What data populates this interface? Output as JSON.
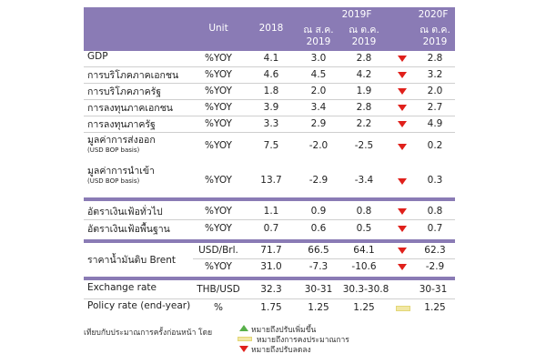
{
  "header": {
    "unit": "Unit",
    "y2018": "2018",
    "y2019": "2019F",
    "y2020": "2020F",
    "col_prev_2019": "ณ ส.ค. 2019",
    "col_cur_2019": "ณ ต.ค. 2019",
    "col_cur_2020": "ณ ต.ค. 2019"
  },
  "rows": [
    {
      "label": "GDP",
      "unit": "%YOY",
      "v2018": "4.1",
      "prev": "3.0",
      "cur": "2.8",
      "dir": "down",
      "v2020": "2.8"
    },
    {
      "label": "การบริโภคภาคเอกชน",
      "unit": "%YOY",
      "v2018": "4.6",
      "prev": "4.5",
      "cur": "4.2",
      "dir": "down",
      "v2020": "3.2"
    },
    {
      "label": "การบริโภคภาครัฐ",
      "unit": "%YOY",
      "v2018": "1.8",
      "prev": "2.0",
      "cur": "1.9",
      "dir": "down",
      "v2020": "2.0"
    },
    {
      "label": "การลงทุนภาคเอกชน",
      "unit": "%YOY",
      "v2018": "3.9",
      "prev": "3.4",
      "cur": "2.8",
      "dir": "down",
      "v2020": "2.7"
    },
    {
      "label": "การลงทุนภาครัฐ",
      "unit": "%YOY",
      "v2018": "3.3",
      "prev": "2.9",
      "cur": "2.2",
      "dir": "down",
      "v2020": "4.9"
    },
    {
      "label": "มูลค่าการส่งออก",
      "sub": "(USD BOP basis)",
      "unit": "%YOY",
      "v2018": "7.5",
      "prev": "-2.0",
      "cur": "-2.5",
      "dir": "down",
      "v2020": "0.2"
    },
    {
      "label": "มูลค่าการนำเข้า",
      "sub": "(USD BOP basis)",
      "unit": "%YOY",
      "v2018": "13.7",
      "prev": "-2.9",
      "cur": "-3.4",
      "dir": "down",
      "v2020": "0.3"
    },
    {
      "label": "อัตราเงินเฟ้อทั่วไป",
      "unit": "%YOY",
      "v2018": "1.1",
      "prev": "0.9",
      "cur": "0.8",
      "dir": "down",
      "v2020": "0.8"
    },
    {
      "label": "อัตราเงินเฟ้อพื้นฐาน",
      "unit": "%YOY",
      "v2018": "0.7",
      "prev": "0.6",
      "cur": "0.5",
      "dir": "down",
      "v2020": "0.7"
    },
    {
      "label": "ราคาน้ำมันดิบ Brent",
      "unit": "USD/Brl.",
      "v2018": "71.7",
      "prev": "66.5",
      "cur": "64.1",
      "dir": "down",
      "v2020": "62.3"
    },
    {
      "label": "",
      "unit": "%YOY",
      "v2018": "31.0",
      "prev": "-7.3",
      "cur": "-10.6",
      "dir": "down",
      "v2020": "-2.9"
    },
    {
      "label": "Exchange rate",
      "unit": "THB/USD",
      "v2018": "32.3",
      "prev": "30-31",
      "cur": "30.3-30.8",
      "dir": "",
      "v2020": "30-31"
    },
    {
      "label": "Policy rate (end-year)",
      "unit": "%",
      "v2018": "1.75",
      "prev": "1.25",
      "cur": "1.25",
      "dir": "flat",
      "v2020": "1.25"
    }
  ],
  "legend": {
    "up": "หมายถึงปรับเพิ่มขึ้น",
    "flat": "หมายถึงการคงประมาณการ",
    "down": "หมายถึงปรับลดลง"
  },
  "footnote": "เทียบกับประมาณการครั้งก่อนหน้า โดย",
  "colors": {
    "header": "#8a7bb5",
    "down": "#e0201b",
    "up": "#58b04a",
    "flat": "#f1e7a4"
  }
}
